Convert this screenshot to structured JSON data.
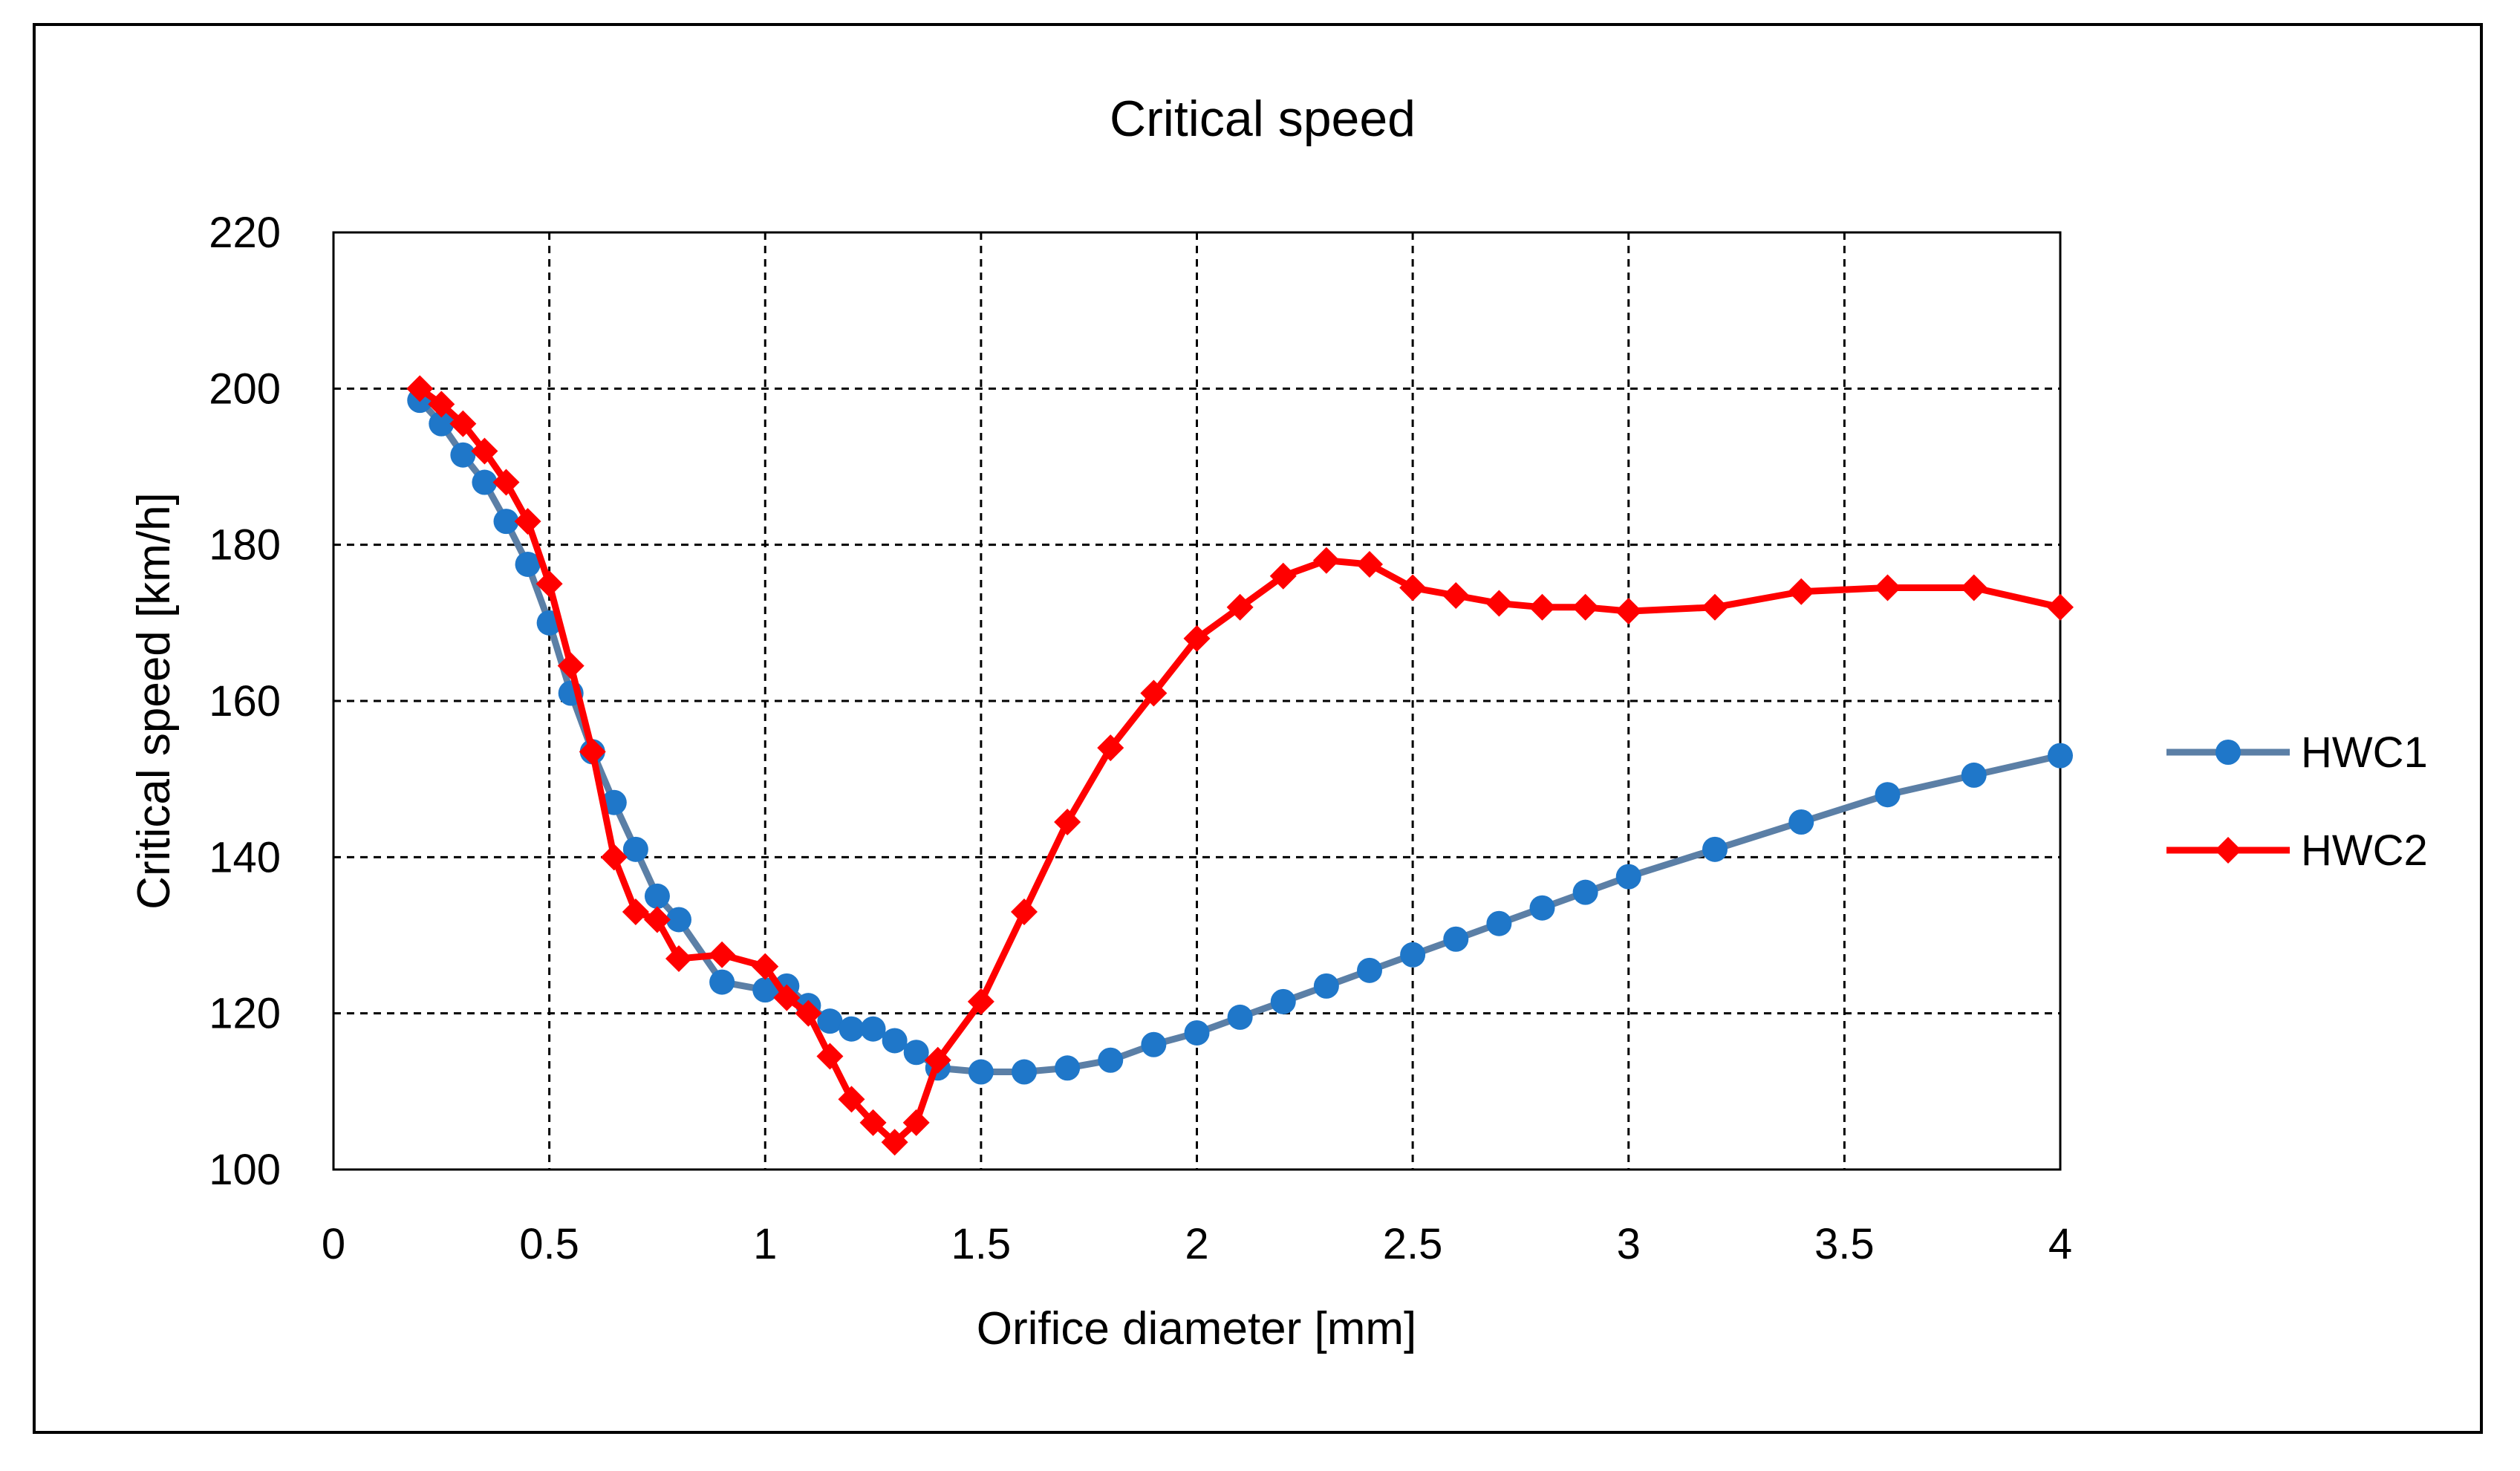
{
  "chart_data": {
    "type": "line",
    "title": "Critical speed",
    "xlabel": "Orifice diameter [mm]",
    "ylabel": "Critical speed [km/h]",
    "xlim": [
      0,
      4
    ],
    "ylim": [
      100,
      220
    ],
    "x_ticks": [
      "0",
      "0.5",
      "1",
      "1.5",
      "2",
      "2.5",
      "3",
      "3.5",
      "4"
    ],
    "y_ticks": [
      "100",
      "120",
      "140",
      "160",
      "180",
      "200",
      "220"
    ],
    "grid": true,
    "legend_position": "right",
    "series": [
      {
        "name": "HWC1",
        "color": "#5b7fa6",
        "marker_color": "#1f77c9",
        "marker": "circle",
        "x": [
          0.2,
          0.25,
          0.3,
          0.35,
          0.4,
          0.45,
          0.5,
          0.55,
          0.6,
          0.65,
          0.7,
          0.75,
          0.8,
          0.9,
          1.0,
          1.05,
          1.1,
          1.15,
          1.2,
          1.25,
          1.3,
          1.35,
          1.4,
          1.5,
          1.6,
          1.7,
          1.8,
          1.9,
          2.0,
          2.1,
          2.2,
          2.3,
          2.4,
          2.5,
          2.6,
          2.7,
          2.8,
          2.9,
          3.0,
          3.2,
          3.4,
          3.6,
          3.8,
          4.0
        ],
        "y": [
          198.5,
          195.5,
          191.5,
          188,
          183,
          177.5,
          170,
          161,
          153.5,
          147,
          141,
          135,
          132,
          124,
          123,
          123.5,
          121,
          119,
          118,
          118,
          116.5,
          115,
          113,
          112.5,
          112.5,
          113,
          114,
          116,
          117.5,
          119.5,
          121.5,
          123.5,
          125.5,
          127.5,
          129.5,
          131.5,
          133.5,
          135.5,
          137.5,
          141,
          144.5,
          148,
          150.5,
          153
        ]
      },
      {
        "name": "HWC2",
        "color": "#ff0000",
        "marker_color": "#ff0000",
        "marker": "diamond",
        "x": [
          0.2,
          0.25,
          0.3,
          0.35,
          0.4,
          0.45,
          0.5,
          0.55,
          0.6,
          0.65,
          0.7,
          0.75,
          0.8,
          0.9,
          1.0,
          1.05,
          1.1,
          1.15,
          1.2,
          1.25,
          1.3,
          1.35,
          1.4,
          1.5,
          1.6,
          1.7,
          1.8,
          1.9,
          2.0,
          2.1,
          2.2,
          2.3,
          2.4,
          2.5,
          2.6,
          2.7,
          2.8,
          2.9,
          3.0,
          3.2,
          3.4,
          3.6,
          3.8,
          4.0
        ],
        "y": [
          200,
          198,
          195.5,
          192,
          188,
          183,
          175,
          164.5,
          153.5,
          140,
          133,
          132,
          127,
          127.5,
          126,
          122,
          120,
          114.5,
          109,
          106,
          103.5,
          106,
          114,
          121.5,
          133,
          144.5,
          154,
          161,
          168,
          172,
          176,
          178,
          177.5,
          174.5,
          173.5,
          172.5,
          172,
          172,
          171.5,
          172,
          174,
          174.5,
          174.5,
          172
        ]
      }
    ]
  }
}
